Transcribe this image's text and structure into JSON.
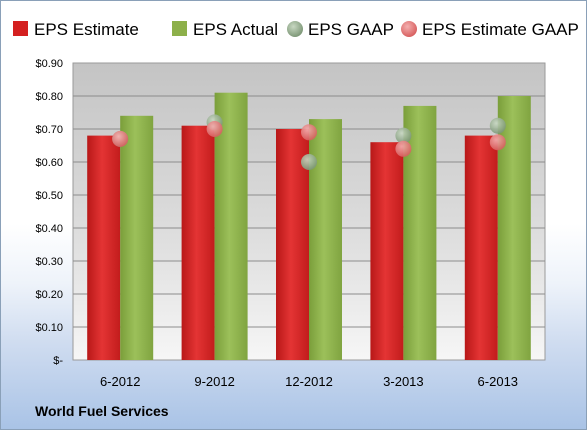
{
  "chart_data": {
    "type": "bar",
    "categories": [
      "6-2012",
      "9-2012",
      "12-2012",
      "3-2013",
      "6-2013"
    ],
    "series": [
      {
        "name": "EPS Estimate",
        "kind": "bar",
        "color": "#d42020",
        "values": [
          0.68,
          0.71,
          0.7,
          0.66,
          0.68
        ]
      },
      {
        "name": "EPS Actual",
        "kind": "bar",
        "color": "#8db04a",
        "values": [
          0.74,
          0.81,
          0.73,
          0.77,
          0.8
        ]
      },
      {
        "name": "EPS GAAP",
        "kind": "marker",
        "color": "#8da886",
        "values": [
          0.67,
          0.72,
          0.6,
          0.68,
          0.71
        ]
      },
      {
        "name": "EPS Estimate GAAP",
        "kind": "marker",
        "color": "#e07070",
        "values": [
          0.67,
          0.7,
          0.69,
          0.64,
          0.66
        ]
      }
    ],
    "y_tick_labels": [
      "$-",
      "$0.10",
      "$0.20",
      "$0.30",
      "$0.40",
      "$0.50",
      "$0.60",
      "$0.70",
      "$0.80",
      "$0.90"
    ],
    "ylim": [
      0,
      0.9
    ],
    "grid": true,
    "legend_position": "top",
    "footer": "World Fuel Services"
  }
}
